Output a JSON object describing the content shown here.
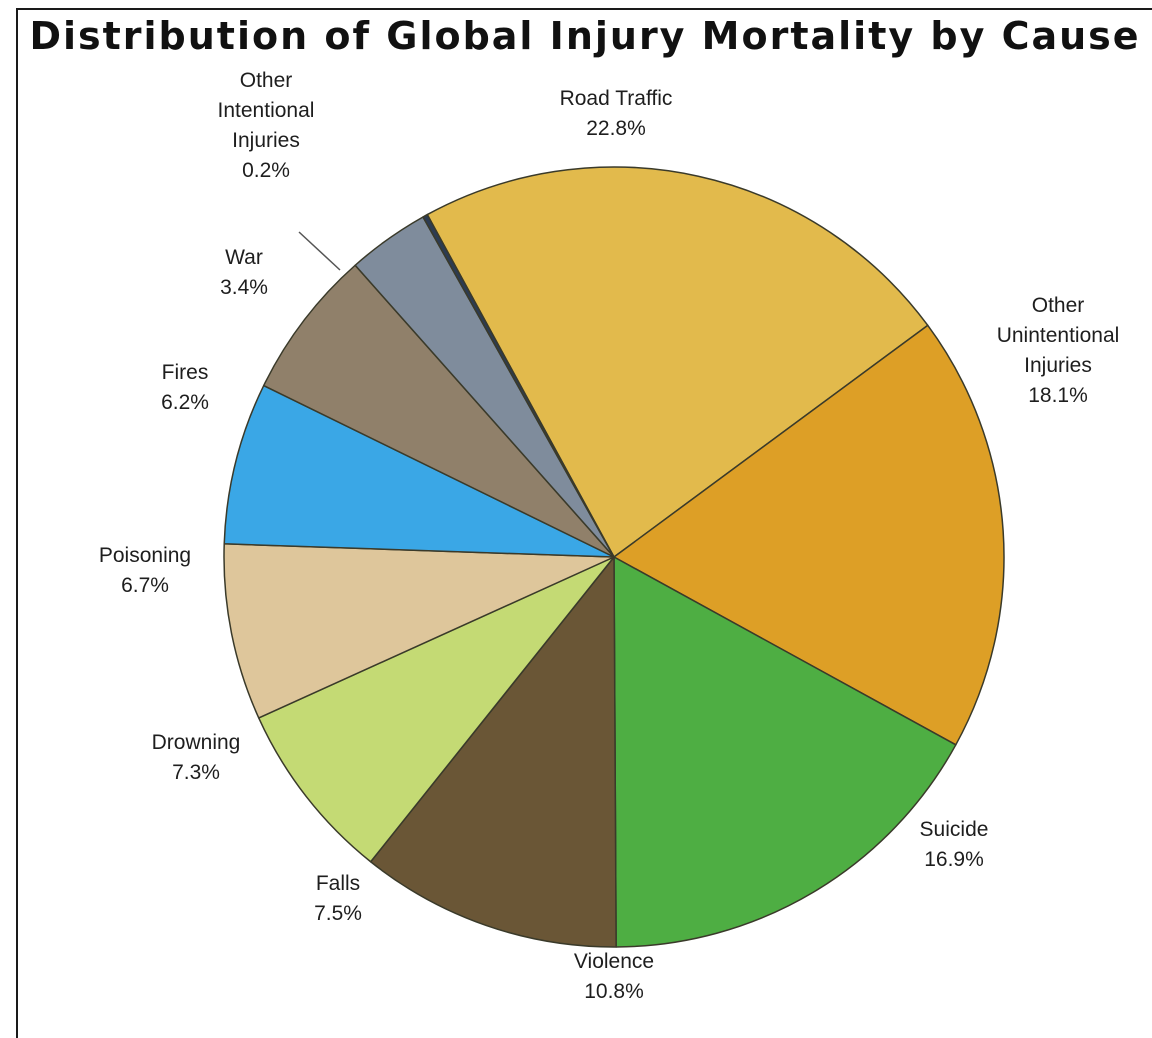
{
  "chart_data": {
    "type": "pie",
    "title": "Distribution of Global Injury Mortality by Cause",
    "slices": [
      {
        "name": "Road Traffic",
        "name_lines": [
          "Road Traffic"
        ],
        "value_label": "22.8%",
        "value": 22.8,
        "color": "#E2BA4C"
      },
      {
        "name": "Other Unintentional Injuries",
        "name_lines": [
          "Other",
          "Unintentional",
          "Injuries"
        ],
        "value_label": "18.1%",
        "value": 18.1,
        "color": "#DD9F26"
      },
      {
        "name": "Suicide",
        "name_lines": [
          "Suicide"
        ],
        "value_label": "16.9%",
        "value": 16.9,
        "color": "#4EAE43"
      },
      {
        "name": "Violence",
        "name_lines": [
          "Violence"
        ],
        "value_label": "10.8%",
        "value": 10.8,
        "color": "#6A5636"
      },
      {
        "name": "Falls",
        "name_lines": [
          "Falls"
        ],
        "value_label": "7.5%",
        "value": 7.5,
        "color": "#C4DA74"
      },
      {
        "name": "Drowning",
        "name_lines": [
          "Drowning"
        ],
        "value_label": "7.3%",
        "value": 7.3,
        "color": "#DEC69B"
      },
      {
        "name": "Poisoning",
        "name_lines": [
          "Poisoning"
        ],
        "value_label": "6.7%",
        "value": 6.7,
        "color": "#3AA7E6"
      },
      {
        "name": "Fires",
        "name_lines": [
          "Fires"
        ],
        "value_label": "6.2%",
        "value": 6.2,
        "color": "#90806A"
      },
      {
        "name": "War",
        "name_lines": [
          "War"
        ],
        "value_label": "3.4%",
        "value": 3.4,
        "color": "#7F8C9C"
      },
      {
        "name": "Other Intentional Injuries",
        "name_lines": [
          "Other",
          "Intentional",
          "Injuries"
        ],
        "value_label": "0.2%",
        "value": 0.2,
        "color": "#2C3B52"
      }
    ]
  }
}
